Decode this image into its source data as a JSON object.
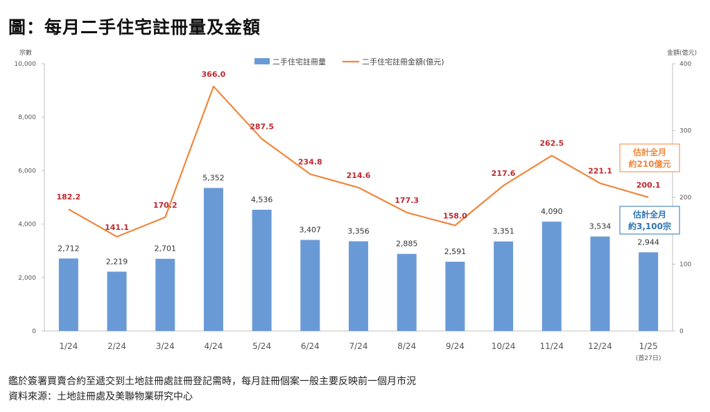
{
  "title": "圖：每月二手住宅註冊量及金額",
  "notes": [
    "鑑於簽署買賣合約至遞交到土地註冊處註冊登記需時，每月註冊個案一般主要反映前一個月市況",
    "資料來源：土地註冊處及美聯物業研究中心"
  ],
  "colors": {
    "bar": "#6a9ad6",
    "line": "#f0863c",
    "line_label": "#c0282d",
    "axis": "#bfbfbf",
    "callout_orange": "#f0863c",
    "callout_blue": "#2e75b6"
  },
  "chart_data": {
    "type": "bar",
    "categories": [
      "1/24",
      "2/24",
      "3/24",
      "4/24",
      "5/24",
      "6/24",
      "7/24",
      "8/24",
      "9/24",
      "10/24",
      "11/24",
      "12/24",
      "1/25"
    ],
    "category_sublabels": {
      "12": "(首27日)"
    },
    "series": [
      {
        "name": "二手住宅註冊量",
        "type": "bar",
        "axis": "left",
        "values": [
          2712,
          2219,
          2701,
          5352,
          4536,
          3407,
          3356,
          2885,
          2591,
          3351,
          4090,
          3534,
          2944
        ],
        "labels": [
          "2,712",
          "2,219",
          "2,701",
          "5,352",
          "4,536",
          "3,407",
          "3,356",
          "2,885",
          "2,591",
          "3,351",
          "4,090",
          "3,534",
          "2,944"
        ]
      },
      {
        "name": "二手住宅註冊金額(億元)",
        "type": "line",
        "axis": "right",
        "values": [
          182.2,
          141.1,
          170.2,
          366.0,
          287.5,
          234.8,
          214.6,
          177.3,
          158.0,
          217.6,
          262.5,
          221.1,
          200.1
        ],
        "labels": [
          "182.2",
          "141.1",
          "170.2",
          "366.0",
          "287.5",
          "234.8",
          "214.6",
          "177.3",
          "158.0",
          "217.6",
          "262.5",
          "221.1",
          "200.1"
        ]
      }
    ],
    "left_axis": {
      "label": "宗數",
      "ylim": [
        0,
        10000
      ],
      "ticks": [
        "0",
        "2,000",
        "4,000",
        "6,000",
        "8,000",
        "10,000"
      ]
    },
    "right_axis": {
      "label": "金額(億元)",
      "ylim": [
        0,
        400
      ],
      "ticks": [
        "0",
        "100",
        "200",
        "300",
        "400"
      ]
    },
    "legend_position": "top-center",
    "grid": false,
    "annotations": [
      {
        "lines": [
          "估計全月",
          "約210億元"
        ],
        "color": "orange"
      },
      {
        "lines": [
          "估計全月",
          "約3,100宗"
        ],
        "color": "blue"
      }
    ]
  }
}
